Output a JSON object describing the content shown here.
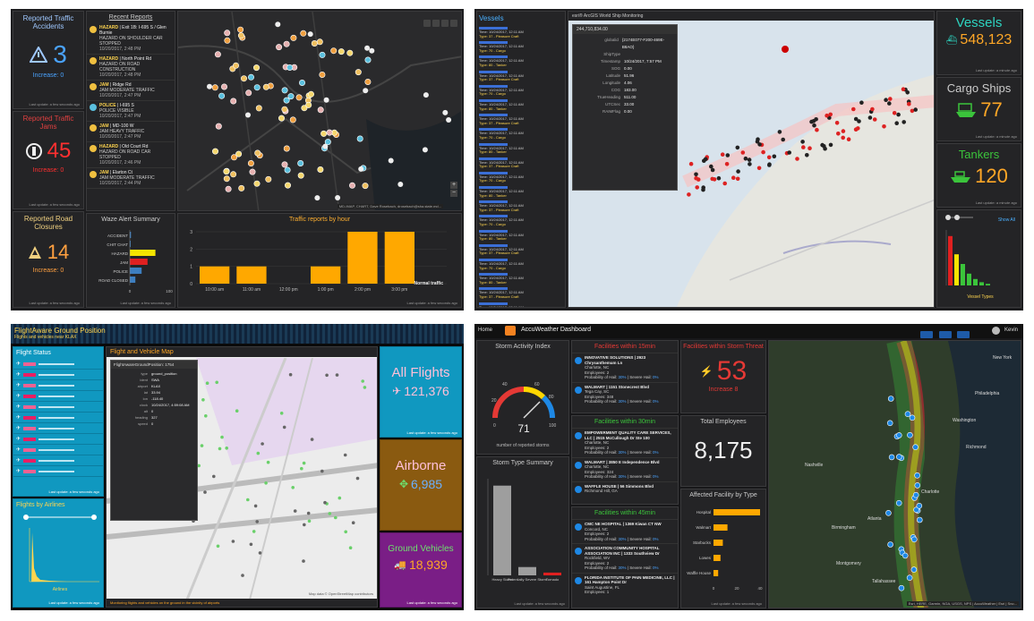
{
  "q1": {
    "accidents": {
      "title": "Reported Traffic Accidents",
      "value": "3",
      "delta": "Increase: 0",
      "foot": "Last update: a few seconds ago"
    },
    "jams": {
      "title": "Reported Traffic Jams",
      "value": "45",
      "delta": "Increase: 0",
      "foot": "Last update: a few seconds ago"
    },
    "closures": {
      "title": "Reported Road Closures",
      "value": "14",
      "delta": "Increase: 0",
      "foot": "Last update: a few seconds ago"
    },
    "recent": {
      "title": "Recent Reports",
      "items": [
        {
          "tag": "HAZARD",
          "rest": " | Exit 1B: I-695 S / Glen Burnie",
          "l2": "HAZARD ON SHOULDER CAR STOPPED",
          "l3": "10/20/2017, 2:48 PM",
          "color": "#f0c040"
        },
        {
          "tag": "HAZARD",
          "rest": " | North Point Rd",
          "l2": "HAZARD ON ROAD CONSTRUCTION",
          "l3": "10/20/2017, 2:48 PM",
          "color": "#f0c040"
        },
        {
          "tag": "JAM",
          "rest": " | Ridge Rd",
          "l2": "JAM MODERATE TRAFFIC",
          "l3": "10/20/2017, 2:47 PM",
          "color": "#f0c040"
        },
        {
          "tag": "POLICE",
          "rest": " | I-695 S",
          "l2": "POLICE VISIBLE",
          "l3": "10/20/2017, 2:47 PM",
          "color": "#5bc0de"
        },
        {
          "tag": "JAM",
          "rest": " | MD-100 W",
          "l2": "JAM HEAVY TRAFFIC",
          "l3": "10/20/2017, 2:47 PM",
          "color": "#f0c040"
        },
        {
          "tag": "HAZARD",
          "rest": " | Old Court Rd",
          "l2": "HAZARD ON ROAD CAR STOPPED",
          "l3": "10/20/2017, 2:46 PM",
          "color": "#f0c040"
        },
        {
          "tag": "JAM",
          "rest": " | Elarton Ct",
          "l2": "JAM MODERATE TRAFFIC",
          "l3": "10/20/2017, 2:44 PM",
          "color": "#f0c040"
        }
      ]
    },
    "map_credit": "MD-IMAP, CHART, Dave Rosebach, drosebach@sha.state.md...",
    "waze": {
      "title": "Waze Alert Summary",
      "foot": "Last update: a few seconds ago",
      "categories": [
        "ACCIDENT",
        "CHIT CHAT",
        "HAZARD",
        "JAM",
        "POLICE",
        "ROAD CLOSED"
      ],
      "values": [
        3,
        2,
        65,
        45,
        30,
        14
      ],
      "colors": [
        "#3d7ebf",
        "#3d7ebf",
        "#f5e400",
        "#e02020",
        "#3d7ebf",
        "#3d7ebf"
      ],
      "xticks": [
        "0",
        "100"
      ]
    },
    "hourly": {
      "title": "Traffic reports by hour",
      "foot": "Last update: a few seconds ago",
      "categories": [
        "10:00 am",
        "11:00 am",
        "12:00 pm",
        "1:00 pm",
        "2:00 pm",
        "3:00 pm"
      ],
      "values": [
        1,
        1,
        0,
        1,
        3,
        3
      ],
      "yticks": [
        "0",
        "1",
        "2",
        "3"
      ],
      "normal_label": "Normal traffic"
    }
  },
  "q2": {
    "vessels_list": {
      "title": "Vessels",
      "items": [
        "Time: 10/24/2017, 12:11 AM",
        "Type: 37 - Pleasure Craft",
        "Time: 10/24/2017, 12:11 AM",
        "Type: 70 - Cargo",
        "Time: 10/24/2017, 12:11 AM",
        "Type: 80 - Tanker"
      ]
    },
    "map_title": "esri® ArcGIS World Ship Monitoring",
    "popup": {
      "title": "244,710,834.00",
      "rows": [
        [
          "globalid",
          "{2174E077-F200-469E-B8AO}"
        ],
        [
          "ShipType",
          ""
        ],
        [
          "Timestamp",
          "10/24/2017, 7:57 PM"
        ],
        [
          "SOG",
          "0.00"
        ],
        [
          "Latitude",
          "51.96"
        ],
        [
          "Longitude",
          "4.06"
        ],
        [
          "COG",
          "183.00"
        ],
        [
          "TrueHeading",
          "511.00"
        ],
        [
          "UTCSec",
          "33.00"
        ],
        [
          "RAIMFlag",
          "0.00"
        ]
      ]
    },
    "vessels": {
      "title": "Vessels",
      "value": "548,123",
      "foot": "Last update: a minute ago"
    },
    "cargo": {
      "title": "Cargo Ships",
      "value": "77",
      "foot": "Last update: a minute ago"
    },
    "tankers": {
      "title": "Tankers",
      "value": "120",
      "foot": "Last update: a minute ago"
    },
    "types": {
      "show_all": "Show All",
      "xlabel": "Vessel Types",
      "values": [
        92,
        58,
        40,
        22,
        12,
        6,
        3
      ],
      "colors": [
        "#e02020",
        "#f5e400",
        "#3bc43b",
        "#3bc43b",
        "#3bc43b",
        "#3bc43b",
        "#3bc43b"
      ]
    }
  },
  "q3": {
    "app_title": "FlightAware Ground Position",
    "app_sub": "Flights and vehicles near KLAX",
    "status": {
      "title": "Flight Status",
      "foot": "Last update: a few seconds ago"
    },
    "map": {
      "title": "Flight and Vehicle Map",
      "credit": "Map data © OpenStreetMap contributors",
      "foot": "Monitoring flights and vehicles on the ground in the vicinity of airports"
    },
    "popup_title": "FlightAwareGroundPosition: 1754",
    "popup_rows": [
      [
        "type",
        "ground_position"
      ],
      [
        "ident",
        "SWA"
      ],
      [
        "airport",
        "KLAX"
      ],
      [
        "lat",
        "33.94"
      ],
      [
        "lon",
        "-118.40"
      ],
      [
        "clock",
        "10/24/2017, 4:59:08 AM"
      ],
      [
        "alt",
        "0"
      ],
      [
        "heading",
        "327"
      ],
      [
        "speed",
        "0"
      ]
    ],
    "airlines": {
      "title": "Flights by Airlines",
      "xlabel": "Airlines",
      "foot": "Last update: a few seconds ago"
    },
    "all_flights": {
      "title": "All Flights",
      "value": "121,376",
      "foot": "Last update: a few seconds ago"
    },
    "airborne": {
      "title": "Airborne",
      "value": "6,985"
    },
    "ground": {
      "title": "Ground Vehicles",
      "value": "18,939",
      "foot": "Last update: a few seconds ago"
    }
  },
  "q4": {
    "app_title": "AccuWeather Dashboard",
    "home": "Home",
    "user": "Kevin",
    "storm_index": {
      "title": "Storm Activity Index",
      "value": "71",
      "min": "0",
      "max": "100",
      "t1": "20",
      "t2": "40",
      "t3": "60",
      "t4": "80",
      "sub": "number of reported storms"
    },
    "f15": {
      "title": "Facilities within 15min",
      "items": [
        {
          "name": "INNOVATIVE SOLUTIONS | 2923 Chrysanthemum Ln",
          "city": "Charlotte, NC",
          "emp": "Employees: 2",
          "prob": "Probability of Hail: ",
          "pct": "30%",
          "sev": " | Severe Hail: ",
          "sevp": "0%"
        },
        {
          "name": "WALMART | 1151 Stonecrest Blvd",
          "city": "Tega Cay, SC",
          "emp": "Employees: 348",
          "prob": "Probability of Hail: ",
          "pct": "30%",
          "sev": " | Severe Hail: ",
          "sevp": "0%"
        }
      ]
    },
    "threat": {
      "title": "Facilities within Storm Threat",
      "value": "53",
      "delta": "Increase 8"
    },
    "f30": {
      "title": "Facilities within 30min",
      "items": [
        {
          "name": "EMPOWERMENT QUALITY CARE SERVICES, LLC | 2515 McCullough Dr Ste 100",
          "city": "Charlotte, NC",
          "emp": "Employees: 2",
          "prob": "Probability of Hail: ",
          "pct": "30%",
          "sev": " | Severe Hail: ",
          "sevp": "0%"
        },
        {
          "name": "WALMART | 3850 E Independence Blvd",
          "city": "Charlotte, NC",
          "emp": "Employees: 324",
          "prob": "Probability of Hail: ",
          "pct": "30%",
          "sev": " | Severe Hail: ",
          "sevp": "0%"
        },
        {
          "name": "WAFFLE HOUSE | 56 Simmons Blvd",
          "city": "Richmond Hill, GA",
          "emp": "",
          "prob": "",
          "pct": "",
          "sev": "",
          "sevp": ""
        }
      ]
    },
    "total_emp": {
      "title": "Total Employees",
      "value": "8,175"
    },
    "f45": {
      "title": "Facilities within 45min",
      "items": [
        {
          "name": "CMC NE HOSPITAL | 1369 Kiwan CT NW",
          "city": "Concord, NC",
          "emp": "Employees: 2",
          "prob": "Probability of Hail: ",
          "pct": "30%",
          "sev": " | Severe Hail: ",
          "sevp": "0%"
        },
        {
          "name": "ASSOCIATION COMMUNITY HOSPITAL ASSOCIATION INC | 1333 Southview Dr",
          "city": "Rockfield, WV",
          "emp": "Employees: 2",
          "prob": "Probability of Hail: ",
          "pct": "30%",
          "sev": " | Severe Hail: ",
          "sevp": "0%"
        },
        {
          "name": "FLORIDA INSTITUTE OF PAIN MEDICINE, LLC | 161 Hampton Point Dr",
          "city": "Saint Augustine, FL",
          "emp": "Employees: 1",
          "prob": "",
          "pct": "",
          "sev": "",
          "sevp": ""
        }
      ]
    },
    "storm_type": {
      "title": "Storm Type Summary",
      "categories": [
        "Heavy Storm",
        "Potentially Severe Storm",
        "Tornado"
      ],
      "values": [
        65,
        6,
        2
      ],
      "colors": [
        "#9e9e9e",
        "#9e9e9e",
        "#e02020"
      ],
      "foot": "Last update: a few seconds ago"
    },
    "affected": {
      "title": "Affected Facility by Type",
      "categories": [
        "Hospital",
        "Walmart",
        "Starbucks",
        "Lowes",
        "Waffle House"
      ],
      "values": [
        40,
        12,
        8,
        6,
        4
      ],
      "xticks": [
        "0",
        "20",
        "40"
      ],
      "foot": "Last update: a few seconds ago"
    },
    "map_labels": [
      "New York",
      "Philadelphia",
      "Washington",
      "Richmond",
      "Charlotte",
      "Atlanta",
      "Birmingham",
      "Montgomery",
      "Tallahassee",
      "Nashville"
    ],
    "map_credit": "Esri, HERE, Garmin, NGA, USGS, NPS | AccuWeather | Esri | Sno..."
  }
}
